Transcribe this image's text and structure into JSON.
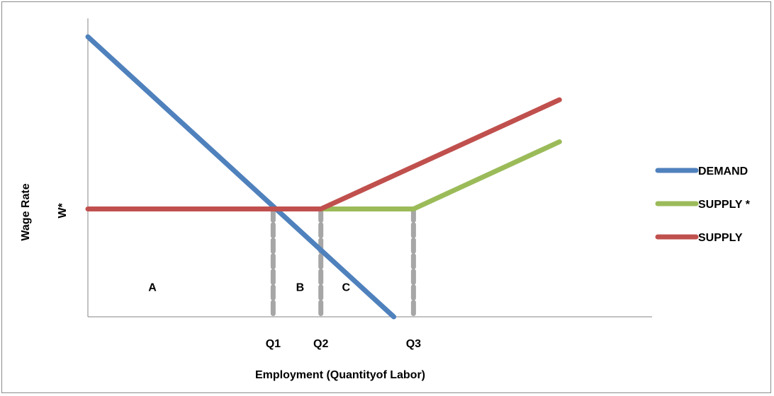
{
  "chart_data": {
    "type": "line",
    "title": "",
    "xlabel": "Employment (Quantityof Labor)",
    "ylabel": "Wage Rate",
    "y_tick_label": "W*",
    "xlim": [
      0,
      10
    ],
    "ylim": [
      0,
      10
    ],
    "grid": false,
    "legend_position": "right",
    "x_tick_labels": [
      {
        "label": "Q1",
        "x": 3.3
      },
      {
        "label": "Q2",
        "x": 4.15
      },
      {
        "label": "Q3",
        "x": 5.8
      }
    ],
    "series": [
      {
        "name": "DEMAND",
        "color": "#4F81BD",
        "points": [
          [
            0,
            10
          ],
          [
            5.45,
            0
          ]
        ]
      },
      {
        "name": "SUPPLY *",
        "color": "#9BBB59",
        "points": [
          [
            4.15,
            3.85
          ],
          [
            5.8,
            3.85
          ],
          [
            8.4,
            6.25
          ]
        ]
      },
      {
        "name": "SUPPLY",
        "color": "#C0504D",
        "points": [
          [
            0,
            3.85
          ],
          [
            4.15,
            3.85
          ],
          [
            8.4,
            7.75
          ]
        ]
      }
    ],
    "reference_lines": [
      {
        "x": 3.3,
        "y_top": 3.85,
        "color": "#A6A6A6"
      },
      {
        "x": 4.15,
        "y_top": 3.85,
        "color": "#A6A6A6"
      },
      {
        "x": 5.8,
        "y_top": 3.85,
        "color": "#A6A6A6"
      }
    ],
    "region_labels": [
      {
        "label": "A",
        "x": 1.15,
        "y": 0.8
      },
      {
        "label": "B",
        "x": 3.78,
        "y": 0.8
      },
      {
        "label": "C",
        "x": 4.6,
        "y": 0.8
      }
    ]
  }
}
